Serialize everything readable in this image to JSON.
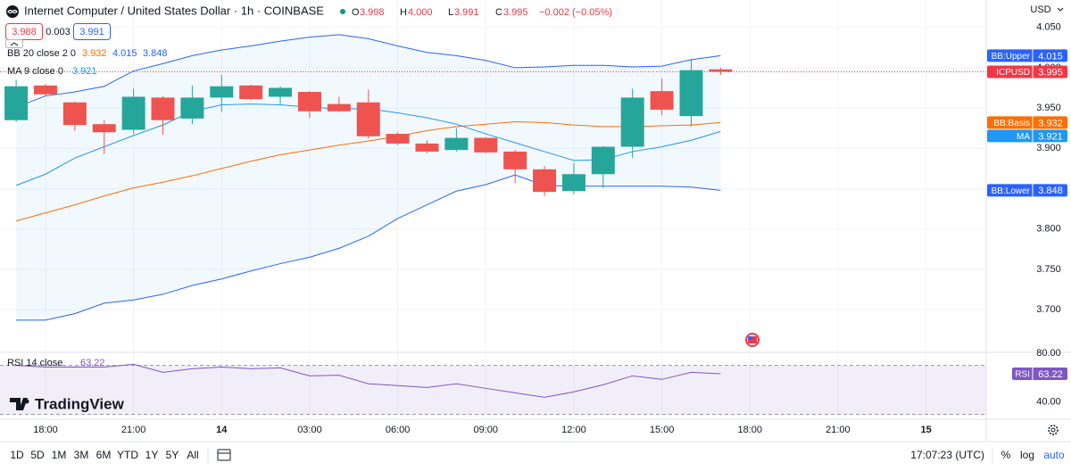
{
  "header": {
    "title": "Internet Computer / United States Dollar · 1h · COINBASE",
    "ohlc": [
      {
        "key": "O",
        "value": "3.998"
      },
      {
        "key": "H",
        "value": "4.000"
      },
      {
        "key": "L",
        "value": "3.991"
      },
      {
        "key": "C",
        "value": "3.995"
      }
    ],
    "change": "−0.002 (−0.05%)",
    "quote": {
      "sell": "3.988",
      "spread": "0.003",
      "buy": "3.991"
    },
    "bb_legend": "BB 20 close 2 0",
    "ma_legend": "MA 9 close 0"
  },
  "branding": "TradingView",
  "toolbar": {
    "ranges": [
      "1D",
      "5D",
      "1M",
      "3M",
      "6M",
      "YTD",
      "1Y",
      "5Y",
      "All"
    ],
    "clock": "17:07:23 (UTC)",
    "options": [
      "%",
      "log",
      "auto"
    ]
  },
  "chart_data": [
    {
      "type": "candlestick",
      "unit": "USD",
      "last_label": "ICPUSD",
      "last_color": "#f23645",
      "up_color": "#26a69a",
      "down_color": "#ef5350",
      "open": [
        3.935,
        3.978,
        3.957,
        3.93,
        3.923,
        3.963,
        3.937,
        3.963,
        3.978,
        3.964,
        3.97,
        3.955,
        3.957,
        3.918,
        3.906,
        3.898,
        3.913,
        3.896,
        3.874,
        3.847,
        3.868,
        3.902,
        3.971,
        3.94,
        3.998
      ],
      "high": [
        3.985,
        3.98,
        3.958,
        3.935,
        3.974,
        3.965,
        3.978,
        3.991,
        3.979,
        3.977,
        3.971,
        3.964,
        3.973,
        3.92,
        3.91,
        3.925,
        3.914,
        3.898,
        3.878,
        3.882,
        3.903,
        3.974,
        3.987,
        4.011,
        4.0
      ],
      "low": [
        3.933,
        3.965,
        3.922,
        3.893,
        3.918,
        3.917,
        3.93,
        3.945,
        3.96,
        3.955,
        3.938,
        3.945,
        3.912,
        3.904,
        3.894,
        3.896,
        3.894,
        3.857,
        3.841,
        3.843,
        3.851,
        3.888,
        3.941,
        3.927,
        3.991
      ],
      "close": [
        3.977,
        3.967,
        3.929,
        3.92,
        3.964,
        3.935,
        3.963,
        3.977,
        3.961,
        3.975,
        3.946,
        3.946,
        3.915,
        3.906,
        3.896,
        3.913,
        3.895,
        3.874,
        3.846,
        3.868,
        3.902,
        3.963,
        3.948,
        3.997,
        3.995
      ],
      "series": [
        {
          "name": "BB:Upper",
          "color": "#2962ff",
          "values": [
            3.951,
            3.965,
            3.97,
            3.977,
            3.996,
            4.005,
            4.015,
            4.022,
            4.027,
            4.033,
            4.038,
            4.041,
            4.036,
            4.027,
            4.019,
            4.015,
            4.009,
            4.0,
            4.001,
            4.003,
            4.003,
            4.001,
            4.002,
            4.01,
            4.015
          ]
        },
        {
          "name": "BB:Basis",
          "color": "#ff6d00",
          "values": [
            3.81,
            3.82,
            3.83,
            3.841,
            3.851,
            3.858,
            3.866,
            3.875,
            3.884,
            3.892,
            3.898,
            3.904,
            3.909,
            3.915,
            3.922,
            3.927,
            3.93,
            3.933,
            3.932,
            3.929,
            3.927,
            3.927,
            3.928,
            3.929,
            3.932
          ]
        },
        {
          "name": "BB:Lower",
          "color": "#2962ff",
          "values": [
            3.687,
            3.687,
            3.695,
            3.708,
            3.712,
            3.719,
            3.73,
            3.738,
            3.748,
            3.757,
            3.765,
            3.776,
            3.791,
            3.813,
            3.83,
            3.847,
            3.855,
            3.867,
            3.854,
            3.853,
            3.853,
            3.853,
            3.853,
            3.852,
            3.848
          ]
        },
        {
          "name": "MA",
          "color": "#2196f3",
          "values": [
            3.854,
            3.868,
            3.888,
            3.902,
            3.916,
            3.929,
            3.946,
            3.954,
            3.955,
            3.954,
            3.951,
            3.949,
            3.949,
            3.944,
            3.938,
            3.93,
            3.918,
            3.907,
            3.896,
            3.885,
            3.886,
            3.896,
            3.902,
            3.91,
            3.921
          ]
        }
      ],
      "ylim": [
        3.647,
        4.084
      ],
      "yticks": [
        {
          "value": 4.05,
          "label": "4.050"
        },
        {
          "value": 4,
          "label": "4.000"
        },
        {
          "value": 3.95,
          "label": "3.950"
        },
        {
          "value": 3.9,
          "label": "3.900"
        },
        {
          "value": 3.85,
          "label": "3.850"
        },
        {
          "value": 3.8,
          "label": "3.800"
        },
        {
          "value": 3.75,
          "label": "3.750"
        },
        {
          "value": 3.7,
          "label": "3.700"
        }
      ],
      "xlim": [
        -0.55,
        33.05
      ],
      "xticks": [
        {
          "value": 1,
          "label": "18:00"
        },
        {
          "value": 4,
          "label": "21:00"
        },
        {
          "value": 7,
          "label": "14"
        },
        {
          "value": 10,
          "label": "03:00"
        },
        {
          "value": 13,
          "label": "06:00"
        },
        {
          "value": 16,
          "label": "09:00"
        },
        {
          "value": 19,
          "label": "12:00"
        },
        {
          "value": 22,
          "label": "15:00"
        },
        {
          "value": 25,
          "label": "18:00"
        },
        {
          "value": 28,
          "label": "21:00"
        },
        {
          "value": 31,
          "label": "15"
        }
      ],
      "grid": true
    },
    {
      "type": "line",
      "name": "RSI",
      "legend": "RSI 14 close",
      "color": "#7e57c2",
      "values": [
        70,
        68.7,
        68.7,
        68.7,
        70.9,
        64.4,
        67.3,
        68.7,
        67.3,
        68,
        61.5,
        62,
        55,
        53.5,
        52,
        55,
        51.3,
        47.6,
        44,
        48.4,
        54.2,
        61.5,
        58.6,
        64.4,
        63.22
      ],
      "ylim": [
        26,
        80.7
      ],
      "yticks": [
        {
          "value": 80,
          "label": "80.00"
        },
        {
          "value": 40,
          "label": "40.00"
        }
      ],
      "band": [
        30,
        70
      ]
    }
  ]
}
